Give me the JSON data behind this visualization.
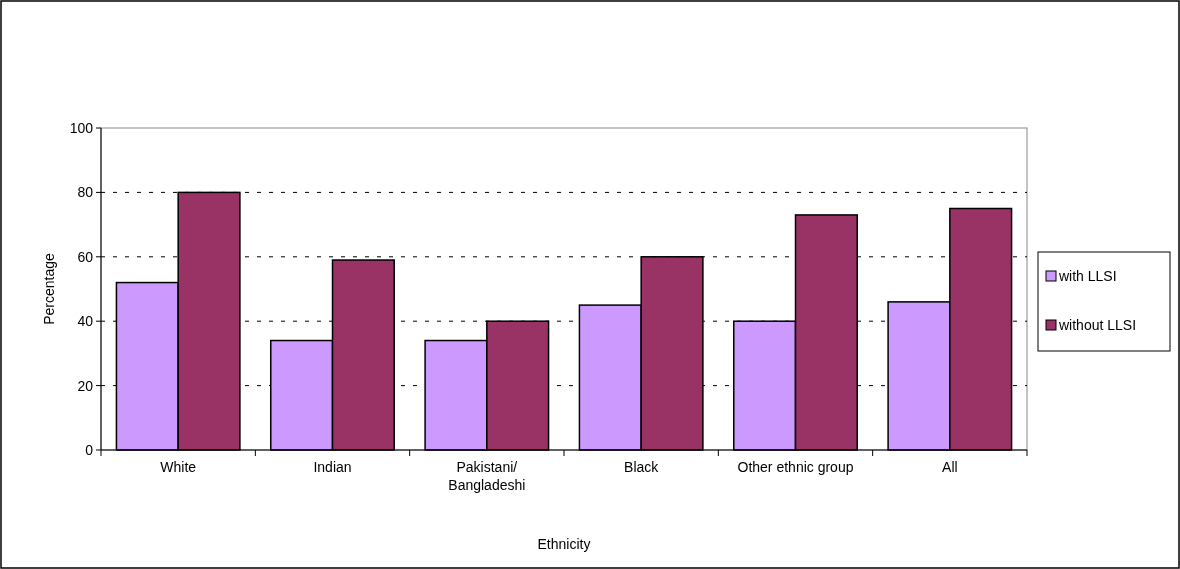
{
  "chart_data": {
    "type": "bar",
    "xlabel": "Ethnicity",
    "ylabel": "Percentage",
    "categories": [
      "White",
      "Indian",
      "Pakistani/\nBangladeshi",
      "Black",
      "Other ethnic group",
      "All"
    ],
    "series": [
      {
        "name": "with LLSI",
        "color": "#cc99ff",
        "values": [
          52,
          34,
          34,
          45,
          40,
          46
        ]
      },
      {
        "name": "without LLSI",
        "color": "#993366",
        "values": [
          80,
          59,
          40,
          60,
          73,
          75
        ]
      }
    ],
    "ylim": [
      0,
      100
    ],
    "yticks": [
      0,
      20,
      40,
      60,
      80,
      100
    ],
    "grid": "y",
    "legend": "right"
  }
}
